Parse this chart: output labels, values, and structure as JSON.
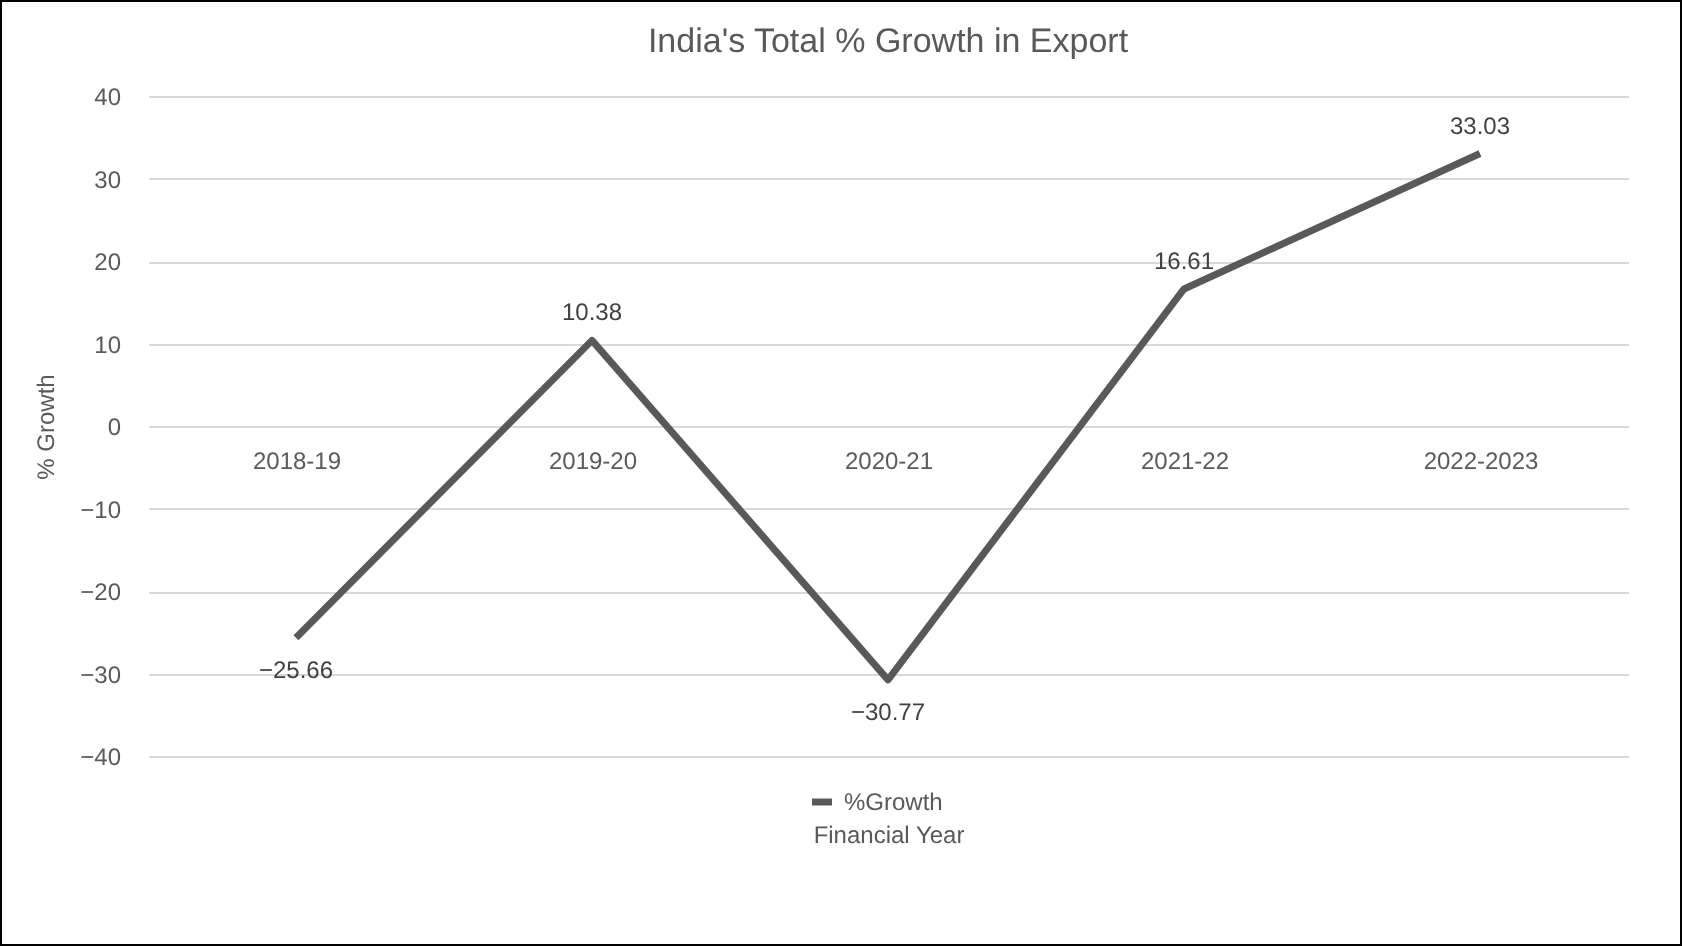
{
  "chart_data": {
    "type": "line",
    "title": "India's Total % Growth in Export",
    "xlabel": "Financial Year",
    "ylabel": "% Growth",
    "categories": [
      "2018-19",
      "2019-20",
      "2020-21",
      "2021-22",
      "2022-2023"
    ],
    "series": [
      {
        "name": "%Growth",
        "color": "#595959",
        "values": [
          -25.66,
          10.38,
          -30.77,
          16.61,
          33.03
        ]
      }
    ],
    "ylim": [
      -40,
      40
    ],
    "yticks": [
      -40,
      -30,
      -20,
      -10,
      0,
      10,
      20,
      30,
      40
    ],
    "grid": "y",
    "legend": "bottom",
    "data_labels": true,
    "marker": "none",
    "line_style": "solid"
  }
}
